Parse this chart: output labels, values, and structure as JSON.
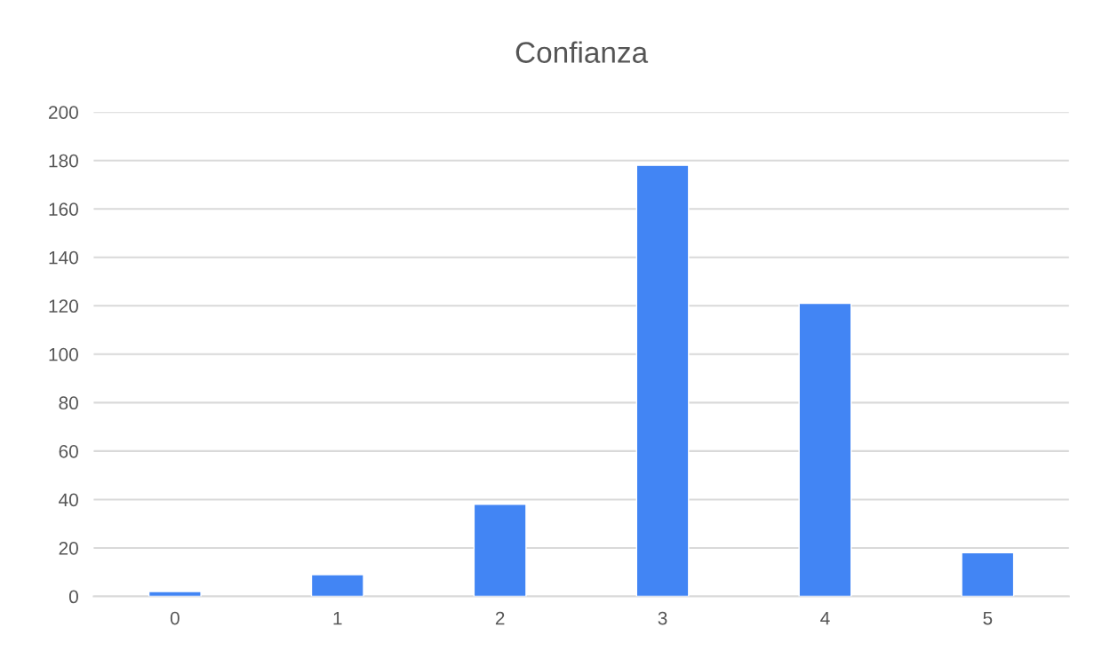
{
  "chart_data": {
    "type": "bar",
    "title": "Confianza",
    "categories": [
      "0",
      "1",
      "2",
      "3",
      "4",
      "5"
    ],
    "values": [
      2,
      9,
      38,
      178,
      121,
      18
    ],
    "color": "#4285f4",
    "ylim": [
      0,
      200
    ],
    "yticks": [
      0,
      20,
      40,
      60,
      80,
      100,
      120,
      140,
      160,
      180,
      200
    ],
    "grid": "y"
  }
}
